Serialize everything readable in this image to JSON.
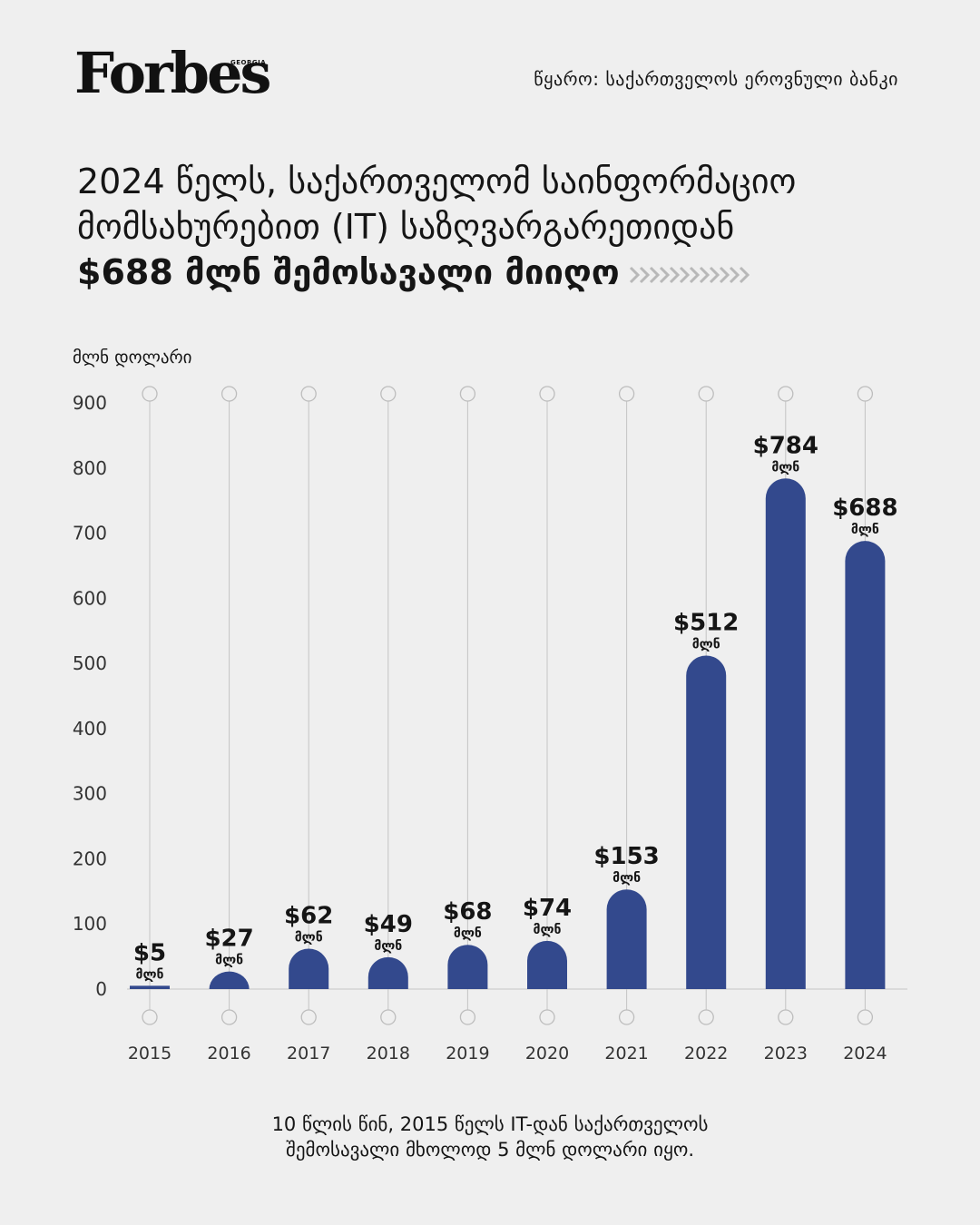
{
  "header": {
    "logo": "Forbes",
    "logo_sub": "GEORGIA",
    "source": "წყარო: საქართველოს ეროვნული ბანკი"
  },
  "headline": {
    "line1": "2024 წელს, საქართველომ საინფორმაციო",
    "line2": "მომსახურებით (IT) საზღვარგარეთიდან",
    "line3": "$688 მლნ შემოსავალი მიიღო"
  },
  "caption": {
    "line1": "10 წლის წინ, 2015 წელს IT-დან საქართველოს",
    "line2": "შემოსავალი მხოლოდ 5 მლნ დოლარი იყო."
  },
  "colors": {
    "bar": "#33498d",
    "background": "#efefef",
    "grid": "#c4c4c4"
  },
  "chart_data": {
    "type": "bar",
    "ylabel": "მლნ დოლარი",
    "ylim": [
      0,
      900
    ],
    "yticks": [
      0,
      100,
      200,
      300,
      400,
      500,
      600,
      700,
      800,
      900
    ],
    "categories": [
      "2015",
      "2016",
      "2017",
      "2018",
      "2019",
      "2020",
      "2021",
      "2022",
      "2023",
      "2024"
    ],
    "values": [
      5,
      27,
      62,
      49,
      68,
      74,
      153,
      512,
      784,
      688
    ],
    "value_labels": [
      "$5",
      "$27",
      "$62",
      "$49",
      "$68",
      "$74",
      "$153",
      "$512",
      "$784",
      "$688"
    ],
    "unit_label": "მლნ"
  }
}
